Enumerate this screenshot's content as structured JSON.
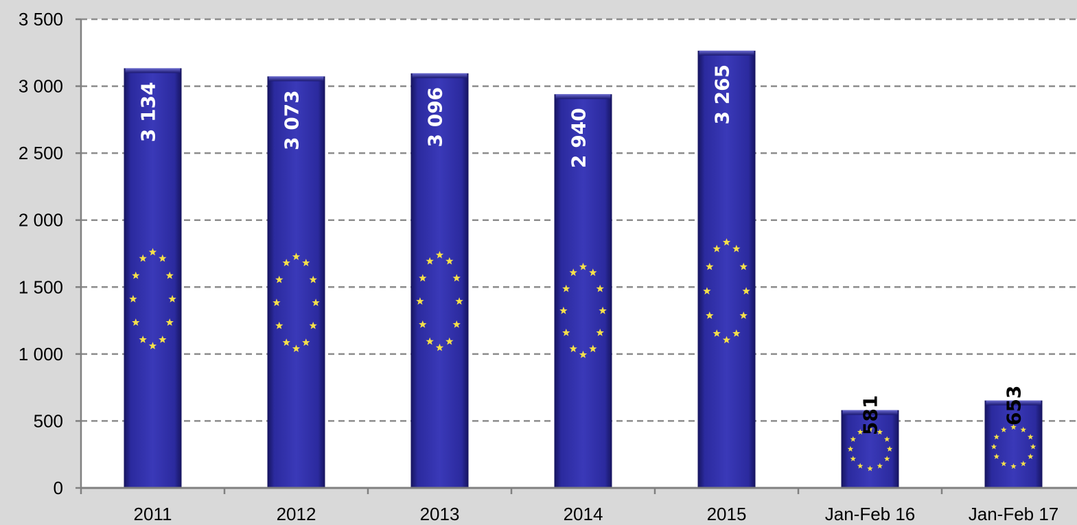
{
  "chart_data": {
    "type": "bar",
    "categories": [
      "2011",
      "2012",
      "2013",
      "2014",
      "2015",
      "Jan-Feb 16",
      "Jan-Feb 17"
    ],
    "values": [
      3134,
      3073,
      3096,
      2940,
      3265,
      581,
      653
    ],
    "value_labels": [
      "3 134",
      "3 073",
      "3 096",
      "2 940",
      "3 265",
      "581",
      "653"
    ],
    "ylim": [
      0,
      3500
    ],
    "yticks": [
      0,
      500,
      1000,
      1500,
      2000,
      2500,
      3000,
      3500
    ],
    "ytick_labels": [
      "0",
      "500",
      "1 000",
      "1 500",
      "2 000",
      "2 500",
      "3 000",
      "3 500"
    ],
    "grid": true,
    "title": "",
    "xlabel": "",
    "ylabel": "",
    "colors": {
      "background": "#d9d9d9",
      "plot_area": "#ffffff",
      "bar": "#2b2a9e",
      "bar_dark": "#16145e",
      "star": "#f5e04a",
      "grid": "#8c8c8c",
      "axis": "#808080"
    }
  }
}
